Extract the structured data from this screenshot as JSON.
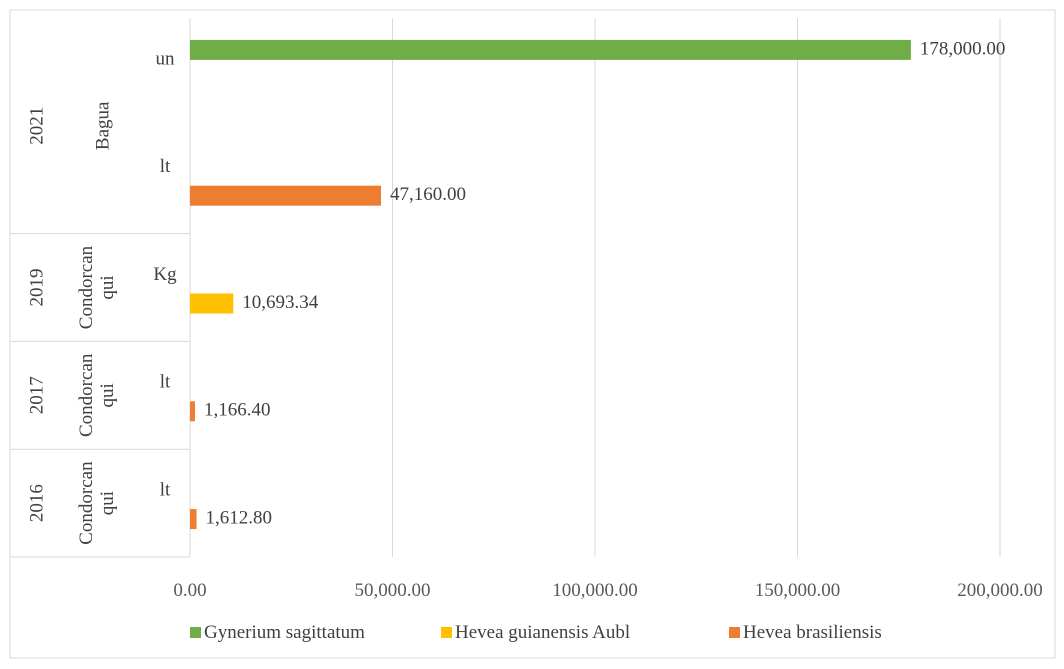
{
  "chart_data": {
    "type": "bar",
    "orientation": "horizontal",
    "xlim": [
      0,
      200000
    ],
    "x_ticks": [
      0,
      50000,
      100000,
      150000,
      200000
    ],
    "x_tick_labels": [
      "0.00",
      "50,000.00",
      "100,000.00",
      "150,000.00",
      "200,000.00"
    ],
    "grid": true,
    "legend_position": "bottom",
    "bars": [
      {
        "year": "2021",
        "place": "Bagua",
        "unit": "un",
        "series": "Gynerium sagittatum",
        "value": 178000,
        "label": "178,000.00"
      },
      {
        "year": "2021",
        "place": "Bagua",
        "unit": "lt",
        "series": "Hevea brasiliensis",
        "value": 47160,
        "label": "47,160.00"
      },
      {
        "year": "2019",
        "place": "Condorcan qui",
        "unit": "Kg",
        "series": "Hevea guianensis  Aubl",
        "value": 10693.34,
        "label": "10,693.34"
      },
      {
        "year": "2017",
        "place": "Condorcan qui",
        "unit": "lt",
        "series": "Hevea brasiliensis",
        "value": 1166.4,
        "label": "1,166.40"
      },
      {
        "year": "2016",
        "place": "Condorcan qui",
        "unit": "lt",
        "series": "Hevea brasiliensis",
        "value": 1612.8,
        "label": "1,612.80"
      }
    ],
    "year_groups": [
      {
        "year": "2021",
        "place": "Bagua",
        "rows": 2
      },
      {
        "year": "2019",
        "place": "Condorcan qui",
        "rows": 1
      },
      {
        "year": "2017",
        "place": "Condorcan qui",
        "rows": 1
      },
      {
        "year": "2016",
        "place": "Condorcan qui",
        "rows": 1
      }
    ],
    "legend": [
      {
        "name": "Gynerium sagittatum",
        "color": "#70AD47"
      },
      {
        "name": "Hevea guianensis  Aubl",
        "color": "#FFC000"
      },
      {
        "name": "Hevea brasiliensis",
        "color": "#ED7D31"
      }
    ]
  }
}
